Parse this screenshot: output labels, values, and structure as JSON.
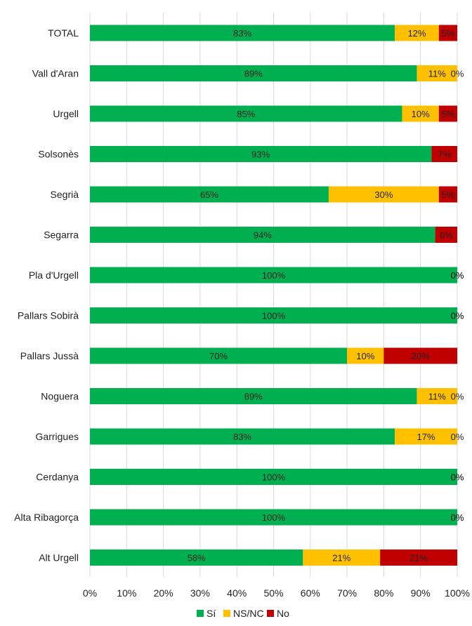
{
  "chart_data": {
    "type": "bar",
    "orientation": "horizontal",
    "stacked": true,
    "categories": [
      "TOTAL",
      "Vall d'Aran",
      "Urgell",
      "Solsonès",
      "Segrià",
      "Segarra",
      "Pla d'Urgell",
      "Pallars Sobirà",
      "Pallars Jussà",
      "Noguera",
      "Garrigues",
      "Cerdanya",
      "Alta Ribagorça",
      "Alt Urgell"
    ],
    "series": [
      {
        "name": "Sí",
        "color": "#00b050",
        "values": [
          83,
          89,
          85,
          93,
          65,
          94,
          100,
          100,
          70,
          89,
          83,
          100,
          100,
          58
        ]
      },
      {
        "name": "NS/NC",
        "color": "#ffc000",
        "values": [
          12,
          11,
          10,
          0,
          30,
          0,
          0,
          0,
          10,
          11,
          17,
          0,
          0,
          21
        ]
      },
      {
        "name": "No",
        "color": "#c00000",
        "values": [
          5,
          0,
          5,
          7,
          5,
          6,
          0,
          0,
          20,
          0,
          0,
          0,
          0,
          21
        ]
      }
    ],
    "xlim": [
      0,
      100
    ],
    "xticks": [
      "0%",
      "10%",
      "20%",
      "30%",
      "40%",
      "50%",
      "60%",
      "70%",
      "80%",
      "90%",
      "100%"
    ],
    "value_suffix": "%",
    "grid": true,
    "legend_position": "bottom",
    "title": "",
    "xlabel": "",
    "ylabel": ""
  }
}
